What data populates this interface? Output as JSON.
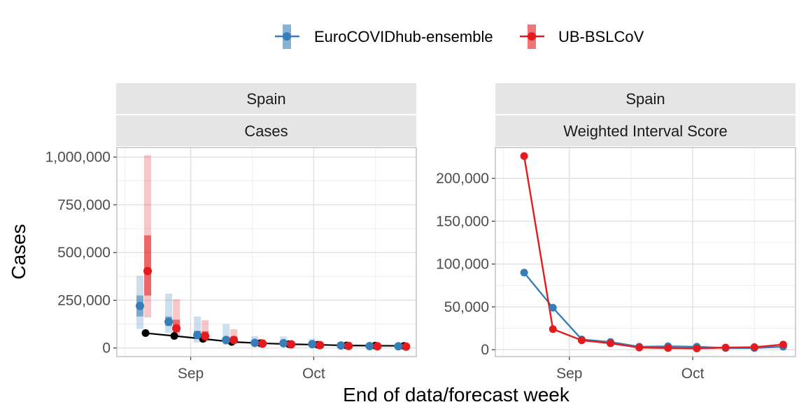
{
  "chart_data": {
    "type": "line",
    "x_axis_title": "End of data/forecast week",
    "x_ticks": [
      "Sep",
      "Oct"
    ],
    "legend": {
      "position": "top",
      "entries": [
        {
          "name": "EuroCOVIDhub-ensemble",
          "color": "#377eb8"
        },
        {
          "name": "UB-BSLCoV",
          "color": "#e41a1c"
        }
      ]
    },
    "colors": {
      "observed": "#000000",
      "ensemble": "#377eb8",
      "ub": "#e41a1c",
      "strip_bg": "#e5e5e5",
      "grid": "#ebebeb",
      "panel_border": "#b3b3b3"
    },
    "weeks": [
      "2021-08-21",
      "2021-08-28",
      "2021-09-04",
      "2021-09-11",
      "2021-09-18",
      "2021-09-25",
      "2021-10-02",
      "2021-10-09",
      "2021-10-16",
      "2021-10-23"
    ],
    "panels": [
      {
        "strip_top": "Spain",
        "strip_bottom": "Cases",
        "y_title": "Cases",
        "ylim": [
          -45000,
          1050000
        ],
        "y_ticks": [
          0,
          250000,
          500000,
          750000,
          1000000
        ],
        "y_tick_labels": [
          "0",
          "250,000",
          "500,000",
          "750,000",
          "1,000,000"
        ],
        "observed": {
          "dates": [
            "2021-08-21",
            "2021-08-28",
            "2021-09-04",
            "2021-09-11",
            "2021-09-18",
            "2021-09-25",
            "2021-10-02",
            "2021-10-09",
            "2021-10-16",
            "2021-10-23"
          ],
          "values": [
            78000,
            63000,
            48000,
            32000,
            25000,
            20000,
            17000,
            13000,
            12000,
            11000
          ]
        },
        "series": [
          {
            "name": "EuroCOVIDhub-ensemble",
            "median": [
              220000,
              137000,
              68000,
              42000,
              27000,
              25000,
              20000,
              13000,
              10000,
              9000
            ],
            "inner": [
              [
                165000,
                275000
              ],
              [
                115000,
                165000
              ],
              [
                48000,
                90000
              ],
              [
                28000,
                58000
              ],
              [
                20000,
                35000
              ],
              [
                18000,
                32000
              ],
              [
                14000,
                26000
              ],
              [
                9000,
                17000
              ],
              [
                7000,
                13000
              ],
              [
                6000,
                12000
              ]
            ],
            "outer": [
              [
                100000,
                378000
              ],
              [
                80000,
                285000
              ],
              [
                28000,
                165000
              ],
              [
                17000,
                125000
              ],
              [
                12000,
                62000
              ],
              [
                10000,
                60000
              ],
              [
                8000,
                48000
              ],
              [
                5000,
                28000
              ],
              [
                4000,
                20000
              ],
              [
                3000,
                18000
              ]
            ]
          },
          {
            "name": "UB-BSLCoV",
            "median": [
              403000,
              103000,
              62000,
              42000,
              23000,
              19000,
              15000,
              11000,
              9000,
              7000
            ],
            "inner": [
              [
                275000,
                590000
              ],
              [
                82000,
                148000
              ],
              [
                46000,
                88000
              ],
              [
                32000,
                60000
              ],
              [
                18000,
                30000
              ],
              [
                15000,
                25000
              ],
              [
                12000,
                20000
              ],
              [
                9000,
                14000
              ],
              [
                7000,
                12000
              ],
              [
                5000,
                10000
              ]
            ],
            "outer": [
              [
                160000,
                1010000
              ],
              [
                60000,
                255000
              ],
              [
                32000,
                145000
              ],
              [
                22000,
                98000
              ],
              [
                13000,
                45000
              ],
              [
                11000,
                35000
              ],
              [
                9000,
                27000
              ],
              [
                6000,
                20000
              ],
              [
                5000,
                16000
              ],
              [
                4000,
                14000
              ]
            ]
          }
        ]
      },
      {
        "strip_top": "Spain",
        "strip_bottom": "Weighted Interval Score",
        "ylim": [
          -8000,
          236000
        ],
        "y_ticks": [
          0,
          50000,
          100000,
          150000,
          200000
        ],
        "y_tick_labels": [
          "0",
          "50,000",
          "100,000",
          "150,000",
          "200,000"
        ],
        "series": [
          {
            "name": "EuroCOVIDhub-ensemble",
            "values": [
              90000,
              49000,
              12000,
              9000,
              3500,
              4000,
              3500,
              2000,
              2000,
              3500
            ]
          },
          {
            "name": "UB-BSLCoV",
            "values": [
              226000,
              24000,
              11000,
              7500,
              2500,
              2000,
              1500,
              2500,
              3000,
              6000
            ]
          }
        ]
      }
    ]
  }
}
